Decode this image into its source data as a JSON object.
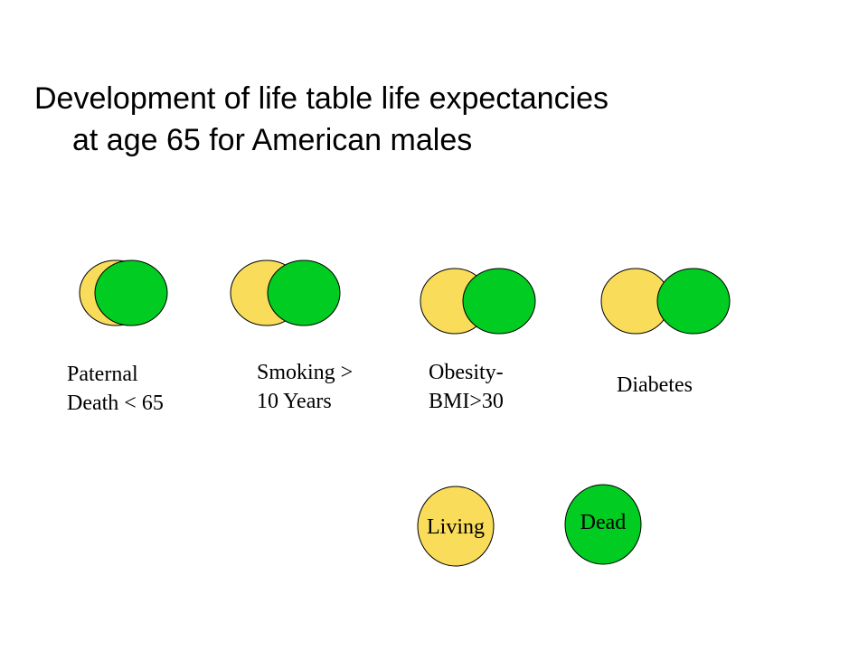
{
  "title": {
    "line1": "Development of life table life expectancies",
    "line2": "at age 65 for American males"
  },
  "colors": {
    "living": "#F8DC5A",
    "dead": "#00CC22",
    "outline": "#000000"
  },
  "factors": [
    {
      "line1": "Paternal",
      "line2": "Death < 65"
    },
    {
      "line1": "Smoking >",
      "line2": "10 Years"
    },
    {
      "line1": "Obesity-",
      "line2": "BMI>30"
    },
    {
      "line1": "Diabetes",
      "line2": ""
    }
  ],
  "legend": {
    "living_label": "Living",
    "dead_label": "Dead"
  }
}
